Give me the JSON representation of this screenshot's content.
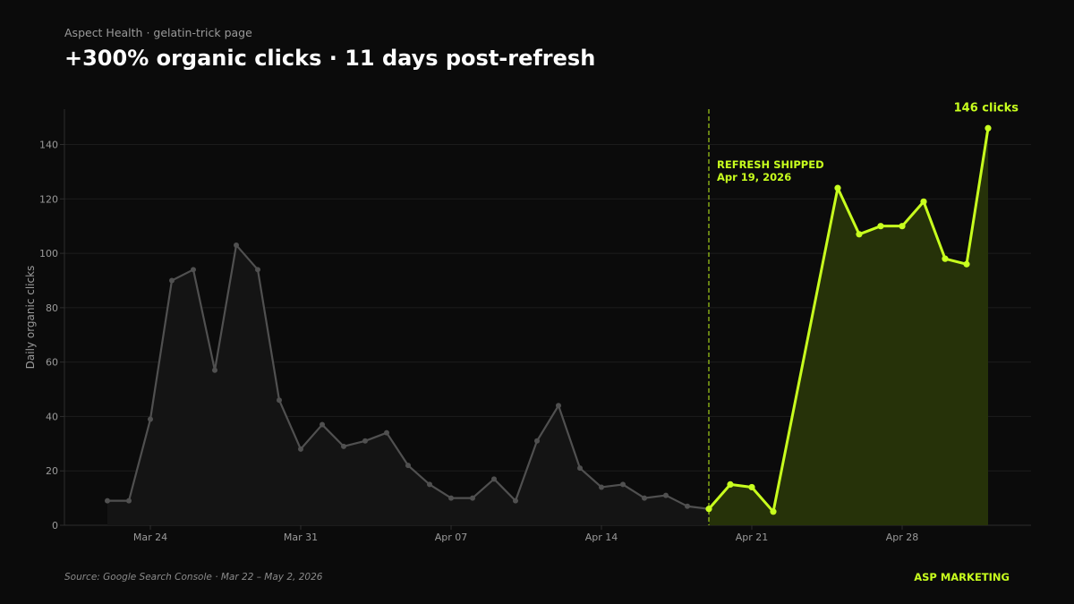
{
  "header": {
    "subtitle": "Aspect Health · gelatin-trick page",
    "title": "+300% organic clicks · 11 days post-refresh"
  },
  "footer": {
    "source": "Source: Google Search Console · Mar 22 – May 2, 2026",
    "brand": "ASP MARKETING"
  },
  "colors": {
    "background": "#0b0b0b",
    "pre_line": "#505050",
    "pre_fill": "#141414",
    "post_line": "#c8ff1e",
    "post_fill": "#263209",
    "grid": "#1c1c1c",
    "axis": "#2e2e2e",
    "tick_text": "#9a9a9a"
  },
  "chart_data": {
    "type": "area",
    "ylabel": "Daily organic clicks",
    "xlabel": "",
    "ylim": [
      0,
      153
    ],
    "yticks": [
      0,
      20,
      40,
      60,
      80,
      100,
      120,
      140
    ],
    "grid": true,
    "x_range": [
      "2026-03-20",
      "2026-05-04"
    ],
    "xticks": [
      {
        "date": "2026-03-24",
        "label": "Mar 24"
      },
      {
        "date": "2026-03-31",
        "label": "Mar 31"
      },
      {
        "date": "2026-04-07",
        "label": "Apr 07"
      },
      {
        "date": "2026-04-14",
        "label": "Apr 14"
      },
      {
        "date": "2026-04-21",
        "label": "Apr 21"
      },
      {
        "date": "2026-04-28",
        "label": "Apr 28"
      }
    ],
    "series": [
      {
        "points": [
          {
            "x": "2026-03-22",
            "y": 9
          },
          {
            "x": "2026-03-23",
            "y": 9
          },
          {
            "x": "2026-03-24",
            "y": 39
          },
          {
            "x": "2026-03-25",
            "y": 90
          },
          {
            "x": "2026-03-26",
            "y": 94
          },
          {
            "x": "2026-03-27",
            "y": 57
          },
          {
            "x": "2026-03-28",
            "y": 103
          },
          {
            "x": "2026-03-29",
            "y": 94
          },
          {
            "x": "2026-03-30",
            "y": 46
          },
          {
            "x": "2026-03-31",
            "y": 28
          },
          {
            "x": "2026-04-01",
            "y": 37
          },
          {
            "x": "2026-04-02",
            "y": 29
          },
          {
            "x": "2026-04-03",
            "y": 31
          },
          {
            "x": "2026-04-04",
            "y": 34
          },
          {
            "x": "2026-04-05",
            "y": 22
          },
          {
            "x": "2026-04-06",
            "y": 15
          },
          {
            "x": "2026-04-07",
            "y": 10
          },
          {
            "x": "2026-04-08",
            "y": 10
          },
          {
            "x": "2026-04-09",
            "y": 17
          },
          {
            "x": "2026-04-10",
            "y": 9
          },
          {
            "x": "2026-04-11",
            "y": 31
          },
          {
            "x": "2026-04-12",
            "y": 44
          },
          {
            "x": "2026-04-13",
            "y": 21
          },
          {
            "x": "2026-04-14",
            "y": 14
          },
          {
            "x": "2026-04-15",
            "y": 15
          },
          {
            "x": "2026-04-16",
            "y": 10
          },
          {
            "x": "2026-04-17",
            "y": 11
          },
          {
            "x": "2026-04-18",
            "y": 7
          },
          {
            "x": "2026-04-19",
            "y": 6
          }
        ]
      },
      {
        "points": [
          {
            "x": "2026-04-19",
            "y": 6
          },
          {
            "x": "2026-04-20",
            "y": 15
          },
          {
            "x": "2026-04-21",
            "y": 14
          },
          {
            "x": "2026-04-22",
            "y": 5
          },
          {
            "x": "2026-04-25",
            "y": 124
          },
          {
            "x": "2026-04-26",
            "y": 107
          },
          {
            "x": "2026-04-27",
            "y": 110
          },
          {
            "x": "2026-04-28",
            "y": 110
          },
          {
            "x": "2026-04-29",
            "y": 119
          },
          {
            "x": "2026-04-30",
            "y": 98
          },
          {
            "x": "2026-05-01",
            "y": 96
          },
          {
            "x": "2026-05-02",
            "y": 146
          }
        ]
      }
    ],
    "annotations": [
      {
        "type": "vline",
        "x": "2026-04-19",
        "label_lines": [
          "REFRESH SHIPPED",
          "Apr 19, 2026"
        ]
      },
      {
        "type": "point_label",
        "x": "2026-05-02",
        "y": 146,
        "label": "146 clicks"
      }
    ]
  }
}
